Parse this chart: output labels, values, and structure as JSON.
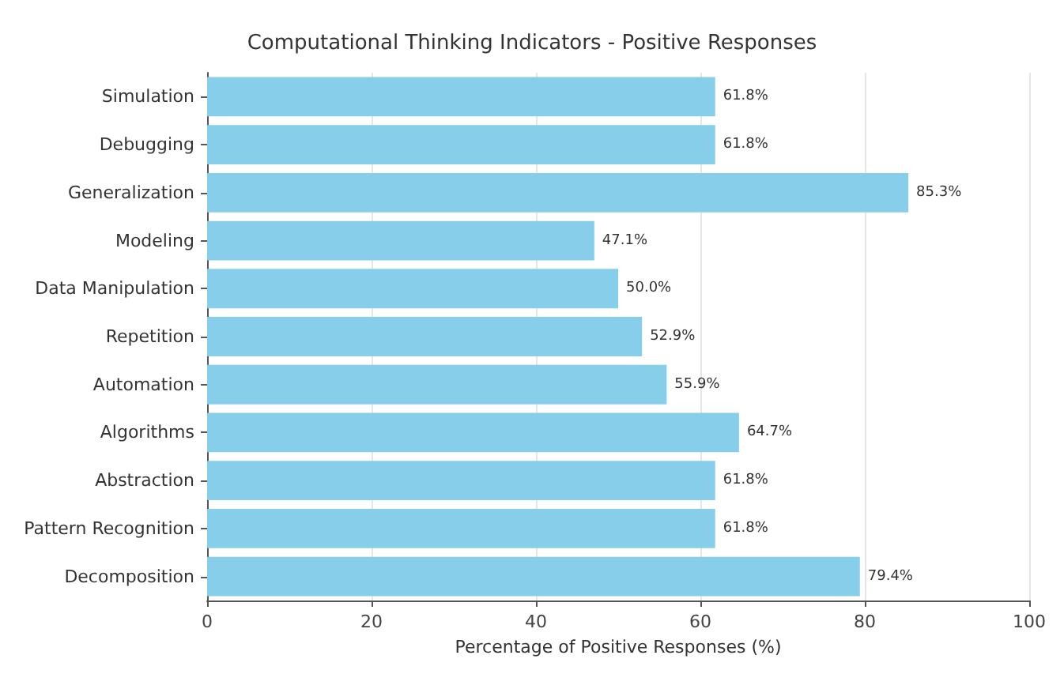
{
  "chart_data": {
    "type": "bar",
    "orientation": "horizontal",
    "title": "Computational Thinking Indicators - Positive Responses",
    "xlabel": "Percentage of Positive Responses (%)",
    "categories": [
      "Simulation",
      "Debugging",
      "Generalization",
      "Modeling",
      "Data Manipulation",
      "Repetition",
      "Automation",
      "Algorithms",
      "Abstraction",
      "Pattern Recognition",
      "Decomposition"
    ],
    "values": [
      61.8,
      61.8,
      85.3,
      47.1,
      50.0,
      52.9,
      55.9,
      64.7,
      61.8,
      61.8,
      79.4
    ],
    "value_labels": [
      "61.8%",
      "61.8%",
      "85.3%",
      "47.1%",
      "50.0%",
      "52.9%",
      "55.9%",
      "64.7%",
      "61.8%",
      "61.8%",
      "79.4%"
    ],
    "color": "#87ceeb",
    "xlim": [
      0,
      100
    ],
    "xticks": [
      0,
      20,
      40,
      60,
      80,
      100
    ],
    "grid": "x"
  }
}
